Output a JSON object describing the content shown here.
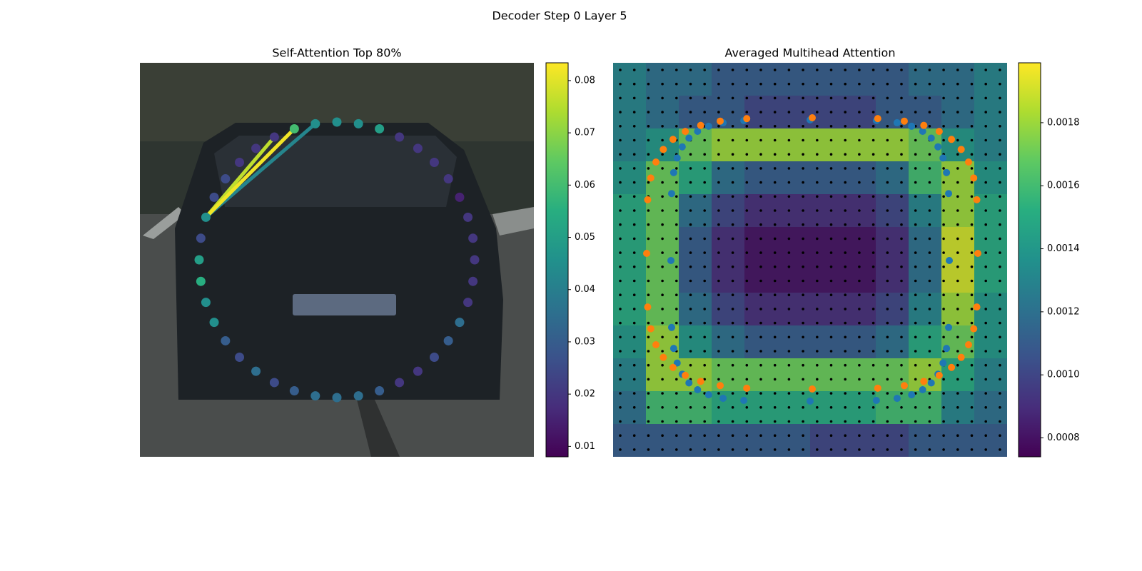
{
  "title": "Decoder Step 0 Layer 5",
  "chart_data": [
    {
      "type": "scatter",
      "title": "Self-Attention Top 80%",
      "colormap": "viridis",
      "values": [
        0.045,
        0.045,
        0.05,
        0.02,
        0.02,
        0.02,
        0.02,
        0.015,
        0.02,
        0.02,
        0.02,
        0.02,
        0.02,
        0.035,
        0.03,
        0.025,
        0.02,
        0.02,
        0.03,
        0.035,
        0.035,
        0.035,
        0.03,
        0.025,
        0.035,
        0.025,
        0.03,
        0.045,
        0.045,
        0.055,
        0.05,
        0.025,
        0.045,
        0.025,
        0.025,
        0.02,
        0.02,
        0.02,
        0.06,
        0.045
      ],
      "links": {
        "source": 32,
        "targets": [
          39,
          37,
          38
        ],
        "values": [
          0.042,
          0.076,
          0.082
        ]
      },
      "clim": [
        0.008,
        0.0834
      ],
      "cticks": [
        0.01,
        0.02,
        0.03,
        0.04,
        0.05,
        0.06,
        0.07,
        0.08
      ]
    },
    {
      "type": "heatmap",
      "title": "Averaged Multihead Attention",
      "colormap": "viridis",
      "values": [
        [
          0.0013,
          0.0012,
          0.0012,
          0.0011,
          0.0011,
          0.0011,
          0.0011,
          0.0011,
          0.0011,
          0.0012,
          0.0012,
          0.0013
        ],
        [
          0.0013,
          0.0012,
          0.0011,
          0.0011,
          0.001,
          0.001,
          0.001,
          0.001,
          0.0011,
          0.0011,
          0.0012,
          0.0013
        ],
        [
          0.0013,
          0.0014,
          0.0017,
          0.0018,
          0.0018,
          0.0018,
          0.0018,
          0.0018,
          0.0018,
          0.0017,
          0.0014,
          0.0013
        ],
        [
          0.0014,
          0.0017,
          0.0015,
          0.0012,
          0.0011,
          0.0011,
          0.0011,
          0.0011,
          0.0012,
          0.0016,
          0.0018,
          0.0014
        ],
        [
          0.0015,
          0.0017,
          0.0012,
          0.001,
          0.0009,
          0.0009,
          0.0009,
          0.0009,
          0.001,
          0.0013,
          0.0018,
          0.0015
        ],
        [
          0.0015,
          0.0017,
          0.0011,
          0.0009,
          0.0008,
          0.0008,
          0.0008,
          0.0008,
          0.0009,
          0.0012,
          0.0019,
          0.0015
        ],
        [
          0.0015,
          0.0017,
          0.0011,
          0.0009,
          0.0008,
          0.0008,
          0.0008,
          0.0008,
          0.0009,
          0.0012,
          0.0019,
          0.0015
        ],
        [
          0.0015,
          0.0017,
          0.0012,
          0.001,
          0.0009,
          0.0009,
          0.0009,
          0.0009,
          0.001,
          0.0013,
          0.0018,
          0.0014
        ],
        [
          0.0014,
          0.0018,
          0.0014,
          0.0012,
          0.0011,
          0.0011,
          0.0011,
          0.0011,
          0.0012,
          0.0015,
          0.0017,
          0.0014
        ],
        [
          0.0013,
          0.0018,
          0.0018,
          0.0017,
          0.0017,
          0.0017,
          0.0017,
          0.0017,
          0.0017,
          0.0018,
          0.0015,
          0.0013
        ],
        [
          0.0012,
          0.0016,
          0.0016,
          0.0015,
          0.0015,
          0.0015,
          0.0015,
          0.0015,
          0.0016,
          0.0016,
          0.0013,
          0.0012
        ],
        [
          0.0011,
          0.0011,
          0.0011,
          0.0011,
          0.0011,
          0.0011,
          0.001,
          0.001,
          0.001,
          0.0011,
          0.0011,
          0.0011
        ]
      ],
      "clim": [
        0.00074,
        0.00199
      ],
      "cticks": [
        0.0008,
        {
          "value": 0.001,
          "label": "0.0010"
        },
        0.0012,
        0.0014,
        0.0016,
        0.0018
      ]
    }
  ]
}
